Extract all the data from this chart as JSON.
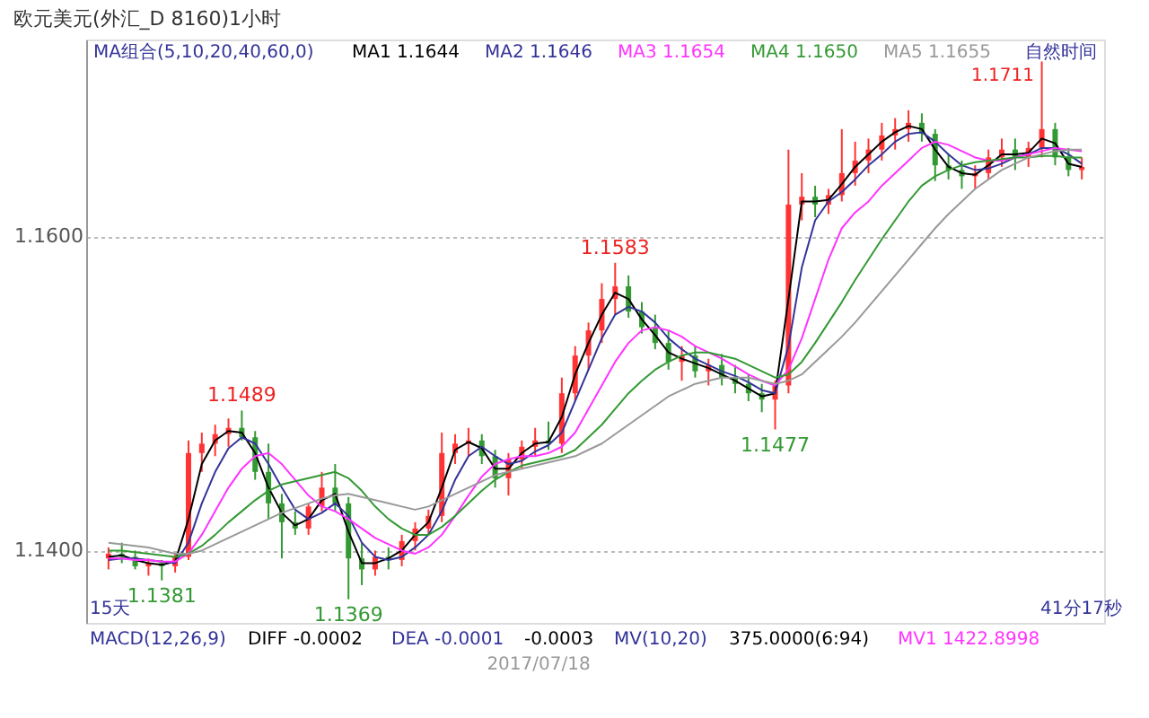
{
  "chart_data": {
    "type": "candlestick",
    "title": "欧元美元(外汇_D 8160)1小时",
    "categories": [
      null,
      null,
      null,
      null,
      null,
      null,
      null,
      null,
      null,
      null,
      null,
      null,
      null,
      null,
      null,
      null,
      null,
      null,
      null,
      null,
      null,
      null,
      null,
      null,
      null,
      null,
      null,
      null,
      null,
      null,
      null,
      null,
      null,
      null,
      null,
      null,
      null,
      null,
      null,
      null,
      null,
      null,
      null,
      null,
      null,
      null,
      null,
      null,
      null,
      null,
      null,
      null,
      null,
      null,
      null,
      null,
      null,
      null,
      null,
      null,
      null,
      null,
      null,
      null,
      null,
      null,
      null,
      null,
      null,
      null,
      null,
      null,
      null,
      null
    ],
    "ohlc": [
      [
        1.1395,
        1.1402,
        1.1388,
        1.1398
      ],
      [
        1.1398,
        1.1405,
        1.1392,
        1.1396
      ],
      [
        1.1396,
        1.14,
        1.1388,
        1.139
      ],
      [
        1.139,
        1.1395,
        1.1384,
        1.1392
      ],
      [
        1.1392,
        1.1394,
        1.1381,
        1.139
      ],
      [
        1.139,
        1.1398,
        1.1386,
        1.1396
      ],
      [
        1.1396,
        1.147,
        1.1394,
        1.1462
      ],
      [
        1.1462,
        1.1475,
        1.145,
        1.1468
      ],
      [
        1.1468,
        1.148,
        1.146,
        1.1474
      ],
      [
        1.1474,
        1.1484,
        1.1466,
        1.1478
      ],
      [
        1.1478,
        1.1489,
        1.147,
        1.1472
      ],
      [
        1.1472,
        1.1476,
        1.1445,
        1.145
      ],
      [
        1.145,
        1.1468,
        1.142,
        1.143
      ],
      [
        1.143,
        1.1436,
        1.1395,
        1.1418
      ],
      [
        1.1418,
        1.1425,
        1.141,
        1.1414
      ],
      [
        1.1414,
        1.143,
        1.141,
        1.1428
      ],
      [
        1.1428,
        1.145,
        1.1425,
        1.144
      ],
      [
        1.144,
        1.1455,
        1.1425,
        1.143
      ],
      [
        1.143,
        1.1434,
        1.1369,
        1.1395
      ],
      [
        1.1395,
        1.1405,
        1.1378,
        1.1388
      ],
      [
        1.1388,
        1.14,
        1.1384,
        1.1396
      ],
      [
        1.1396,
        1.1402,
        1.1388,
        1.1394
      ],
      [
        1.1394,
        1.141,
        1.139,
        1.1406
      ],
      [
        1.1406,
        1.1418,
        1.14,
        1.1414
      ],
      [
        1.1414,
        1.1426,
        1.141,
        1.1422
      ],
      [
        1.1422,
        1.1475,
        1.1418,
        1.1462
      ],
      [
        1.1462,
        1.1474,
        1.1455,
        1.1468
      ],
      [
        1.1468,
        1.1478,
        1.146,
        1.147
      ],
      [
        1.147,
        1.1474,
        1.1455,
        1.146
      ],
      [
        1.146,
        1.1464,
        1.144,
        1.1446
      ],
      [
        1.1446,
        1.1462,
        1.1435,
        1.1458
      ],
      [
        1.1458,
        1.147,
        1.1452,
        1.1466
      ],
      [
        1.1466,
        1.1478,
        1.146,
        1.147
      ],
      [
        1.147,
        1.1482,
        1.1464,
        1.1468
      ],
      [
        1.1468,
        1.151,
        1.1462,
        1.15
      ],
      [
        1.15,
        1.153,
        1.1495,
        1.1524
      ],
      [
        1.1524,
        1.1545,
        1.1515,
        1.154
      ],
      [
        1.154,
        1.157,
        1.1532,
        1.156
      ],
      [
        1.156,
        1.1583,
        1.155,
        1.1568
      ],
      [
        1.1568,
        1.1575,
        1.1548,
        1.1552
      ],
      [
        1.1552,
        1.1558,
        1.1538,
        1.1542
      ],
      [
        1.1542,
        1.155,
        1.1528,
        1.1532
      ],
      [
        1.1532,
        1.154,
        1.1515,
        1.152
      ],
      [
        1.152,
        1.153,
        1.1508,
        1.1524
      ],
      [
        1.1524,
        1.153,
        1.151,
        1.1514
      ],
      [
        1.1514,
        1.1522,
        1.1505,
        1.1518
      ],
      [
        1.1518,
        1.1525,
        1.1505,
        1.151
      ],
      [
        1.151,
        1.1518,
        1.15,
        1.1506
      ],
      [
        1.1506,
        1.1512,
        1.1495,
        1.15
      ],
      [
        1.15,
        1.1506,
        1.1488,
        1.1496
      ],
      [
        1.1496,
        1.1508,
        1.1477,
        1.1505
      ],
      [
        1.1505,
        1.1655,
        1.15,
        1.162
      ],
      [
        1.162,
        1.164,
        1.161,
        1.1625
      ],
      [
        1.1625,
        1.1632,
        1.1612,
        1.162
      ],
      [
        1.162,
        1.163,
        1.1614,
        1.1626
      ],
      [
        1.1626,
        1.1668,
        1.1622,
        1.164
      ],
      [
        1.164,
        1.166,
        1.1632,
        1.1648
      ],
      [
        1.1648,
        1.1662,
        1.164,
        1.1655
      ],
      [
        1.1655,
        1.1672,
        1.1648,
        1.1664
      ],
      [
        1.1664,
        1.1675,
        1.1655,
        1.1668
      ],
      [
        1.1668,
        1.168,
        1.166,
        1.1672
      ],
      [
        1.1672,
        1.1678,
        1.166,
        1.1665
      ],
      [
        1.1665,
        1.1668,
        1.1635,
        1.1645
      ],
      [
        1.1645,
        1.1652,
        1.1636,
        1.1642
      ],
      [
        1.1642,
        1.1648,
        1.163,
        1.1638
      ],
      [
        1.1638,
        1.1645,
        1.163,
        1.164
      ],
      [
        1.164,
        1.1655,
        1.1636,
        1.165
      ],
      [
        1.165,
        1.1662,
        1.1644,
        1.1655
      ],
      [
        1.1655,
        1.1662,
        1.1642,
        1.165
      ],
      [
        1.165,
        1.166,
        1.1644,
        1.1656
      ],
      [
        1.1656,
        1.1711,
        1.165,
        1.1668
      ],
      [
        1.1668,
        1.1672,
        1.1645,
        1.165
      ],
      [
        1.165,
        1.1656,
        1.1638,
        1.1642
      ],
      [
        1.1642,
        1.165,
        1.1636,
        1.1644
      ]
    ],
    "colors": [
      "#ff3333",
      "#339933",
      "#339933",
      "#ff3333",
      "#339933",
      "#ff3333",
      "#ff3333",
      "#ff3333",
      "#ff3333",
      "#ff3333",
      "#339933",
      "#339933",
      "#339933",
      "#339933",
      "#339933",
      "#ff3333",
      "#ff3333",
      "#339933",
      "#339933",
      "#339933",
      "#ff3333",
      "#339933",
      "#ff3333",
      "#ff3333",
      "#ff3333",
      "#ff3333",
      "#ff3333",
      "#ff3333",
      "#339933",
      "#339933",
      "#ff3333",
      "#ff3333",
      "#ff3333",
      "#339933",
      "#ff3333",
      "#ff3333",
      "#ff3333",
      "#ff3333",
      "#ff3333",
      "#339933",
      "#339933",
      "#339933",
      "#339933",
      "#ff3333",
      "#339933",
      "#ff3333",
      "#339933",
      "#339933",
      "#339933",
      "#339933",
      "#ff3333",
      "#ff3333",
      "#ff3333",
      "#339933",
      "#ff3333",
      "#ff3333",
      "#ff3333",
      "#ff3333",
      "#ff3333",
      "#ff3333",
      "#ff3333",
      "#339933",
      "#339933",
      "#339933",
      "#339933",
      "#ff3333",
      "#ff3333",
      "#ff3333",
      "#339933",
      "#ff3333",
      "#ff3333",
      "#339933",
      "#339933",
      "#ff3333"
    ],
    "series": [
      {
        "name": "MA1 1.1644",
        "type": "line",
        "color": "#000000",
        "values": [
          1.1396,
          1.1397,
          1.1394,
          1.1392,
          1.1391,
          1.1393,
          1.142,
          1.1455,
          1.147,
          1.1476,
          1.1475,
          1.1462,
          1.144,
          1.1424,
          1.1416,
          1.142,
          1.1432,
          1.1436,
          1.1412,
          1.1392,
          1.1392,
          1.1395,
          1.14,
          1.141,
          1.1418,
          1.144,
          1.1464,
          1.1469,
          1.1465,
          1.1452,
          1.1452,
          1.1462,
          1.1468,
          1.1469,
          1.1485,
          1.1512,
          1.1532,
          1.155,
          1.1564,
          1.156,
          1.1547,
          1.1537,
          1.1526,
          1.1522,
          1.1519,
          1.1516,
          1.1512,
          1.1508,
          1.1503,
          1.1498,
          1.15,
          1.156,
          1.1622,
          1.1622,
          1.1623,
          1.1633,
          1.1644,
          1.1652,
          1.166,
          1.1666,
          1.167,
          1.1668,
          1.1655,
          1.1644,
          1.164,
          1.1639,
          1.1645,
          1.1652,
          1.1652,
          1.1653,
          1.1662,
          1.1659,
          1.1646,
          1.1644
        ]
      },
      {
        "name": "MA2 1.1646",
        "type": "line",
        "color": "#333399",
        "values": [
          1.1394,
          1.1395,
          1.1395,
          1.1394,
          1.1393,
          1.1392,
          1.1405,
          1.143,
          1.145,
          1.1465,
          1.1472,
          1.1468,
          1.1455,
          1.144,
          1.1426,
          1.142,
          1.1424,
          1.143,
          1.1422,
          1.1405,
          1.1396,
          1.1394,
          1.1396,
          1.1402,
          1.141,
          1.1425,
          1.1445,
          1.146,
          1.1466,
          1.146,
          1.1455,
          1.1457,
          1.1463,
          1.1467,
          1.1475,
          1.1495,
          1.1515,
          1.1535,
          1.155,
          1.1555,
          1.1552,
          1.1545,
          1.1535,
          1.1528,
          1.1522,
          1.1518,
          1.1514,
          1.1511,
          1.1507,
          1.1502,
          1.15,
          1.153,
          1.158,
          1.161,
          1.1622,
          1.1628,
          1.1636,
          1.1645,
          1.1652,
          1.166,
          1.1665,
          1.1666,
          1.166,
          1.1652,
          1.1645,
          1.1642,
          1.1643,
          1.1646,
          1.165,
          1.1652,
          1.1656,
          1.1656,
          1.1652,
          1.1646
        ]
      },
      {
        "name": "MA3 1.1654",
        "type": "line",
        "color": "#ff33ff",
        "values": [
          1.1395,
          1.1395,
          1.1394,
          1.1394,
          1.1393,
          1.1393,
          1.1398,
          1.141,
          1.1425,
          1.144,
          1.1452,
          1.146,
          1.1462,
          1.1455,
          1.1445,
          1.1435,
          1.1428,
          1.1425,
          1.142,
          1.1414,
          1.1408,
          1.1404,
          1.14,
          1.1398,
          1.1402,
          1.141,
          1.1422,
          1.1435,
          1.1447,
          1.1455,
          1.1458,
          1.146,
          1.146,
          1.1462,
          1.1466,
          1.1475,
          1.149,
          1.1505,
          1.152,
          1.1532,
          1.154,
          1.1542,
          1.154,
          1.1536,
          1.153,
          1.1526,
          1.1522,
          1.1517,
          1.1512,
          1.1508,
          1.1505,
          1.1515,
          1.1535,
          1.156,
          1.1585,
          1.1605,
          1.1615,
          1.1622,
          1.1632,
          1.164,
          1.1648,
          1.1656,
          1.166,
          1.1658,
          1.1654,
          1.165,
          1.1648,
          1.1648,
          1.165,
          1.1652,
          1.1654,
          1.1656,
          1.1655,
          1.1654
        ]
      },
      {
        "name": "MA4 1.1650",
        "type": "line",
        "color": "#339933",
        "values": [
          1.14,
          1.14,
          1.1399,
          1.1398,
          1.1397,
          1.1396,
          1.1398,
          1.1403,
          1.141,
          1.1418,
          1.1425,
          1.1432,
          1.1438,
          1.1442,
          1.1444,
          1.1446,
          1.1448,
          1.145,
          1.1446,
          1.1438,
          1.1428,
          1.142,
          1.1414,
          1.141,
          1.141,
          1.1415,
          1.1422,
          1.143,
          1.1438,
          1.1445,
          1.145,
          1.1454,
          1.1456,
          1.1458,
          1.146,
          1.1464,
          1.1472,
          1.148,
          1.149,
          1.15,
          1.1508,
          1.1515,
          1.152,
          1.1524,
          1.1526,
          1.1526,
          1.1524,
          1.1522,
          1.1518,
          1.1514,
          1.151,
          1.1512,
          1.152,
          1.1532,
          1.1545,
          1.1558,
          1.1572,
          1.1585,
          1.1598,
          1.161,
          1.1622,
          1.1632,
          1.1638,
          1.1642,
          1.1645,
          1.1647,
          1.1648,
          1.1649,
          1.165,
          1.165,
          1.1651,
          1.1651,
          1.165,
          1.165
        ]
      },
      {
        "name": "MA5 1.1655",
        "type": "line",
        "color": "#999999",
        "values": [
          1.1405,
          1.1404,
          1.1403,
          1.1402,
          1.14,
          1.1398,
          1.1398,
          1.14,
          1.1404,
          1.1408,
          1.1412,
          1.1416,
          1.142,
          1.1424,
          1.1427,
          1.143,
          1.1433,
          1.1435,
          1.1436,
          1.1434,
          1.1432,
          1.143,
          1.1428,
          1.1426,
          1.1428,
          1.1432,
          1.1436,
          1.144,
          1.1444,
          1.1448,
          1.145,
          1.1452,
          1.1454,
          1.1456,
          1.1458,
          1.146,
          1.1464,
          1.1468,
          1.1474,
          1.148,
          1.1486,
          1.1492,
          1.1498,
          1.1502,
          1.1506,
          1.1508,
          1.151,
          1.151,
          1.151,
          1.1508,
          1.1506,
          1.1508,
          1.1512,
          1.152,
          1.1528,
          1.1536,
          1.1545,
          1.1555,
          1.1565,
          1.1575,
          1.1585,
          1.1595,
          1.1605,
          1.1614,
          1.1622,
          1.163,
          1.1636,
          1.1642,
          1.1646,
          1.165,
          1.1652,
          1.1654,
          1.1655,
          1.1655
        ]
      }
    ],
    "ylim": [
      1.1354,
      1.1725
    ],
    "yticks": [
      {
        "value": 1.14,
        "label": "1.1400"
      },
      {
        "value": 1.16,
        "label": "1.1600"
      }
    ],
    "grid": "y",
    "legend": "top",
    "annotations": [
      "MA组合(5,10,20,40,60,0)",
      "自然时间",
      "15天",
      "41分17秒",
      "MACD(12,26,9)",
      "DIFF -0.0002",
      "DEA -0.0001",
      "-0.0003",
      "MV(10,20)",
      "375.0000(6:94)",
      "MV1 1422.8998",
      "2017/07/18",
      "1.1711",
      {
        "text": "1.1381",
        "y": 1.1381
      },
      {
        "text": "1.1489",
        "y": 1.1489
      },
      {
        "text": "1.1369",
        "y": 1.1369
      },
      {
        "text": "1.1583",
        "y": 1.1583
      },
      {
        "text": "1.1477",
        "y": 1.1477
      }
    ]
  }
}
